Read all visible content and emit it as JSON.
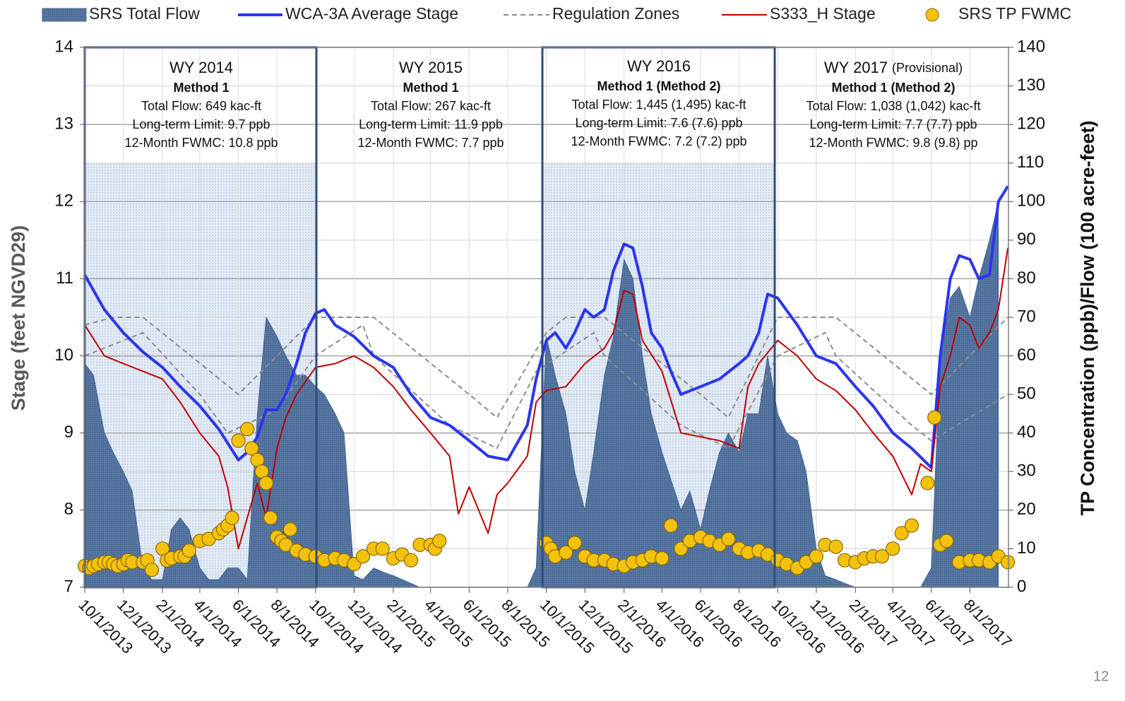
{
  "chart_data": {
    "type": "combo",
    "y_label": "Stage (feet NGVD29)",
    "y2_label": "TP Concentration (ppb)/Flow (100 acre-feet)",
    "page_number": "12",
    "xlim": [
      "10/1/2013",
      "10/1/2017"
    ],
    "xticks": [
      "10/1/2013",
      "12/1/2013",
      "2/1/2014",
      "4/1/2014",
      "6/1/2014",
      "8/1/2014",
      "10/1/2014",
      "12/1/2014",
      "2/1/2015",
      "4/1/2015",
      "6/1/2015",
      "8/1/2015",
      "10/1/2015",
      "12/1/2015",
      "2/1/2016",
      "4/1/2016",
      "6/1/2016",
      "8/1/2016",
      "10/1/2016",
      "12/1/2016",
      "2/1/2017",
      "4/1/2017",
      "6/1/2017",
      "8/1/2017"
    ],
    "ylim": [
      7,
      14
    ],
    "yticks": [
      7,
      8,
      9,
      10,
      11,
      12,
      13,
      14
    ],
    "y2lim": [
      0,
      140
    ],
    "y2ticks": [
      0,
      10,
      20,
      30,
      40,
      50,
      60,
      70,
      80,
      90,
      100,
      110,
      120,
      130,
      140
    ],
    "grid": true,
    "legend": "top",
    "annotations": [
      {
        "title": "WY 2014",
        "method": "Method 1",
        "lines": [
          "Total Flow: 649 kac-ft",
          "Long-term Limit: 9.7 ppb",
          "12-Month FWMC: 10.8 ppb"
        ]
      },
      {
        "title": "WY 2015",
        "method": "Method 1",
        "lines": [
          "Total Flow: 267 kac-ft",
          "Long-term Limit: 11.9 ppb",
          "12-Month FWMC: 7.7 ppb"
        ]
      },
      {
        "title": "WY 2016",
        "method": "Method 1 (Method 2)",
        "lines": [
          "Total Flow: 1,445 (1,495) kac-ft",
          "Long-term Limit: 7.6 (7.6) ppb",
          "12-Month FWMC: 7.2 (7.2) ppb"
        ]
      },
      {
        "title": "WY 2017",
        "note": "(Provisional)",
        "method": "Method 1 (Method 2)",
        "lines": [
          "Total Flow: 1,038 (1,042) kac-ft",
          "Long-term Limit: 7.7 (7.7) ppb",
          "12-Month FWMC: 9.8 (9.8) pp"
        ]
      }
    ],
    "series": [
      {
        "name": "SRS Total Flow",
        "kind": "area",
        "axis": "y2",
        "color": "#3d5f8c",
        "x": [
          "10/1/2013",
          "10/15/2013",
          "11/1/2013",
          "11/15/2013",
          "12/1/2013",
          "12/15/2013",
          "1/1/2014",
          "1/15/2014",
          "2/1/2014",
          "2/15/2014",
          "3/1/2014",
          "3/15/2014",
          "4/1/2014",
          "4/15/2014",
          "5/1/2014",
          "5/15/2014",
          "6/1/2014",
          "6/15/2014",
          "7/1/2014",
          "7/15/2014",
          "8/1/2014",
          "8/15/2014",
          "9/1/2014",
          "9/15/2014",
          "10/1/2014",
          "10/15/2014",
          "11/1/2014",
          "11/15/2014",
          "12/1/2014",
          "12/15/2014",
          "1/1/2015",
          "1/15/2015",
          "2/1/2015",
          "2/15/2015",
          "3/1/2015",
          "3/15/2015",
          "4/1/2015",
          "4/15/2015",
          "5/1/2015",
          "5/15/2015",
          "6/1/2015",
          "6/15/2015",
          "7/1/2015",
          "7/15/2015",
          "8/1/2015",
          "8/15/2015",
          "9/1/2015",
          "9/15/2015",
          "10/1/2015",
          "10/15/2015",
          "11/1/2015",
          "11/15/2015",
          "12/1/2015",
          "12/15/2015",
          "1/1/2016",
          "1/15/2016",
          "2/1/2016",
          "2/15/2016",
          "3/1/2016",
          "3/15/2016",
          "4/1/2016",
          "4/15/2016",
          "5/1/2016",
          "5/15/2016",
          "6/1/2016",
          "6/15/2016",
          "7/1/2016",
          "7/15/2016",
          "8/1/2016",
          "8/15/2016",
          "9/1/2016",
          "9/15/2016",
          "10/1/2016",
          "10/15/2016",
          "11/1/2016",
          "11/15/2016",
          "12/1/2016",
          "12/15/2016",
          "1/1/2017",
          "1/15/2017",
          "2/1/2017",
          "2/15/2017",
          "3/1/2017",
          "3/15/2017",
          "4/1/2017",
          "4/15/2017",
          "5/1/2017",
          "5/15/2017",
          "6/1/2017",
          "6/15/2017",
          "7/1/2017",
          "7/15/2017",
          "8/1/2017",
          "8/15/2017",
          "9/1/2017",
          "9/15/2017"
        ],
        "values": [
          58,
          55,
          40,
          35,
          30,
          25,
          5,
          2,
          2,
          15,
          18,
          15,
          5,
          2,
          2,
          5,
          5,
          2,
          45,
          70,
          65,
          60,
          55,
          55,
          52,
          50,
          45,
          40,
          3,
          2,
          5,
          4,
          3,
          2,
          1,
          0,
          0,
          0,
          0,
          0,
          0,
          0,
          0,
          0,
          0,
          0,
          0,
          5,
          65,
          55,
          45,
          30,
          20,
          35,
          55,
          65,
          85,
          80,
          60,
          45,
          35,
          28,
          20,
          25,
          15,
          25,
          35,
          40,
          35,
          45,
          45,
          60,
          45,
          40,
          38,
          30,
          10,
          3,
          2,
          1,
          0,
          0,
          0,
          0,
          0,
          0,
          0,
          0,
          5,
          60,
          75,
          78,
          70,
          80,
          90,
          100
        ]
      },
      {
        "name": "WCA-3A Average Stage",
        "kind": "line",
        "color": "#2a35f0",
        "width": 4,
        "x": [
          "10/1/2013",
          "11/1/2013",
          "12/1/2013",
          "1/1/2014",
          "2/1/2014",
          "3/1/2014",
          "4/1/2014",
          "5/1/2014",
          "6/1/2014",
          "6/15/2014",
          "7/1/2014",
          "7/15/2014",
          "8/1/2014",
          "8/15/2014",
          "9/1/2014",
          "9/15/2014",
          "10/1/2014",
          "10/15/2014",
          "11/1/2014",
          "12/1/2014",
          "1/1/2015",
          "2/1/2015",
          "3/1/2015",
          "4/1/2015",
          "5/1/2015",
          "6/1/2015",
          "7/1/2015",
          "8/1/2015",
          "9/1/2015",
          "9/15/2015",
          "10/1/2015",
          "10/15/2015",
          "11/1/2015",
          "11/15/2015",
          "12/1/2015",
          "12/15/2015",
          "1/1/2016",
          "1/15/2016",
          "2/1/2016",
          "2/15/2016",
          "3/1/2016",
          "3/15/2016",
          "4/1/2016",
          "4/15/2016",
          "5/1/2016",
          "6/1/2016",
          "7/1/2016",
          "8/1/2016",
          "8/15/2016",
          "9/1/2016",
          "9/15/2016",
          "10/1/2016",
          "11/1/2016",
          "12/1/2016",
          "1/1/2017",
          "2/1/2017",
          "3/1/2017",
          "4/1/2017",
          "5/1/2017",
          "6/1/2017",
          "6/15/2017",
          "7/1/2017",
          "7/15/2017",
          "8/1/2017",
          "8/15/2017",
          "9/1/2017",
          "9/15/2017",
          "9/30/2017"
        ],
        "values": [
          11.05,
          10.6,
          10.3,
          10.05,
          9.85,
          9.6,
          9.35,
          9.05,
          8.65,
          8.75,
          8.95,
          9.3,
          9.3,
          9.5,
          9.9,
          10.3,
          10.55,
          10.6,
          10.4,
          10.25,
          10.0,
          9.85,
          9.5,
          9.2,
          9.1,
          8.9,
          8.7,
          8.65,
          9.1,
          9.7,
          10.2,
          10.3,
          10.1,
          10.3,
          10.6,
          10.5,
          10.6,
          11.1,
          11.45,
          11.4,
          10.9,
          10.3,
          10.1,
          9.8,
          9.5,
          9.6,
          9.7,
          9.9,
          10.0,
          10.3,
          10.8,
          10.75,
          10.4,
          10.0,
          9.9,
          9.6,
          9.35,
          9.0,
          8.8,
          8.55,
          10.0,
          11.0,
          11.3,
          11.25,
          11.0,
          11.05,
          12.0,
          12.2
        ]
      },
      {
        "name": "Regulation Zones",
        "kind": "dashed",
        "color": "#8c8c8c",
        "width": 2,
        "lines": [
          {
            "x": [
              "10/1/2013",
              "11/15/2013",
              "1/1/2014",
              "6/1/2014",
              "10/1/2014",
              "1/1/2015",
              "6/1/2015",
              "7/15/2015",
              "10/1/2015",
              "11/1/2015",
              "1/1/2016",
              "6/1/2016",
              "7/15/2016",
              "10/1/2016",
              "1/1/2017",
              "6/1/2017",
              "9/30/2017"
            ],
            "values": [
              10.4,
              10.5,
              10.5,
              9.5,
              10.5,
              10.5,
              9.5,
              9.2,
              10.3,
              10.5,
              10.5,
              9.5,
              9.2,
              10.5,
              10.5,
              9.5,
              10.5
            ]
          },
          {
            "x": [
              "10/1/2013",
              "1/1/2014",
              "4/1/2014",
              "5/15/2014",
              "8/1/2014",
              "10/1/2014",
              "12/15/2014",
              "1/1/2015",
              "5/1/2015",
              "7/15/2015",
              "9/15/2015",
              "12/15/2015",
              "1/1/2016",
              "5/1/2016",
              "7/15/2016",
              "10/1/2016",
              "12/15/2016",
              "1/1/2017",
              "5/1/2017",
              "6/1/2017",
              "9/30/2017"
            ],
            "values": [
              10.0,
              10.3,
              9.5,
              9.0,
              9.3,
              10.0,
              10.4,
              10.0,
              9.1,
              8.8,
              9.8,
              10.3,
              10.0,
              9.1,
              8.8,
              10.0,
              10.3,
              10.0,
              9.1,
              8.9,
              9.5
            ]
          }
        ]
      },
      {
        "name": "S333_H Stage",
        "kind": "line",
        "color": "#c00000",
        "width": 2,
        "x": [
          "10/1/2013",
          "11/1/2013",
          "12/1/2013",
          "1/1/2014",
          "2/1/2014",
          "3/1/2014",
          "4/1/2014",
          "5/1/2014",
          "5/15/2014",
          "6/1/2014",
          "6/15/2014",
          "7/1/2014",
          "7/15/2014",
          "8/1/2014",
          "8/15/2014",
          "9/1/2014",
          "10/1/2014",
          "11/1/2014",
          "12/1/2014",
          "1/1/2015",
          "2/1/2015",
          "3/1/2015",
          "4/1/2015",
          "5/1/2015",
          "5/15/2015",
          "6/1/2015",
          "7/1/2015",
          "7/15/2015",
          "8/1/2015",
          "9/1/2015",
          "9/15/2015",
          "10/1/2015",
          "11/1/2015",
          "12/1/2015",
          "1/1/2016",
          "1/15/2016",
          "2/1/2016",
          "2/15/2016",
          "3/1/2016",
          "4/1/2016",
          "5/1/2016",
          "6/1/2016",
          "7/1/2016",
          "8/1/2016",
          "8/15/2016",
          "9/1/2016",
          "10/1/2016",
          "11/1/2016",
          "12/1/2016",
          "1/1/2017",
          "2/1/2017",
          "3/1/2017",
          "4/1/2017",
          "5/1/2017",
          "5/15/2017",
          "6/1/2017",
          "6/15/2017",
          "7/1/2017",
          "7/15/2017",
          "8/1/2017",
          "8/15/2017",
          "9/1/2017",
          "9/15/2017",
          "9/30/2017"
        ],
        "values": [
          10.4,
          10.0,
          9.9,
          9.8,
          9.7,
          9.4,
          9.0,
          8.7,
          8.3,
          7.5,
          7.9,
          8.35,
          7.9,
          8.8,
          9.2,
          9.5,
          9.85,
          9.9,
          10.0,
          9.85,
          9.6,
          9.3,
          9.0,
          8.7,
          7.95,
          8.3,
          7.7,
          8.2,
          8.35,
          8.7,
          9.4,
          9.55,
          9.6,
          9.9,
          10.1,
          10.3,
          10.85,
          10.8,
          10.2,
          9.8,
          9.0,
          8.95,
          8.9,
          8.8,
          9.6,
          9.9,
          10.2,
          10.0,
          9.7,
          9.55,
          9.3,
          9.0,
          8.7,
          8.2,
          8.6,
          8.5,
          9.6,
          10.0,
          10.5,
          10.4,
          10.1,
          10.3,
          10.6,
          11.4
        ]
      },
      {
        "name": "SRS TP FWMC",
        "kind": "dots",
        "axis": "y2",
        "color": "#f4c20d",
        "x": [
          "10/1/2013",
          "10/8/2013",
          "10/15/2013",
          "10/22/2013",
          "11/1/2013",
          "11/8/2013",
          "11/15/2013",
          "11/22/2013",
          "12/1/2013",
          "12/8/2013",
          "12/15/2013",
          "1/1/2014",
          "1/8/2014",
          "1/15/2014",
          "2/1/2014",
          "2/8/2014",
          "2/15/2014",
          "3/1/2014",
          "3/8/2014",
          "3/15/2014",
          "4/1/2014",
          "4/15/2014",
          "5/1/2014",
          "5/8/2014",
          "5/15/2014",
          "5/22/2014",
          "6/1/2014",
          "6/15/2014",
          "6/22/2014",
          "7/1/2014",
          "7/8/2014",
          "7/15/2014",
          "7/22/2014",
          "8/1/2014",
          "8/8/2014",
          "8/15/2014",
          "8/22/2014",
          "9/1/2014",
          "9/15/2014",
          "10/1/2014",
          "10/15/2014",
          "11/1/2014",
          "11/15/2014",
          "12/1/2014",
          "12/15/2014",
          "1/1/2015",
          "1/15/2015",
          "2/1/2015",
          "2/15/2015",
          "3/1/2015",
          "3/15/2015",
          "4/1/2015",
          "4/8/2015",
          "4/15/2015",
          "10/1/2015",
          "10/8/2015",
          "10/15/2015",
          "11/1/2015",
          "11/15/2015",
          "12/1/2015",
          "12/15/2015",
          "1/1/2016",
          "1/15/2016",
          "2/1/2016",
          "2/15/2016",
          "3/1/2016",
          "3/15/2016",
          "4/1/2016",
          "4/15/2016",
          "5/1/2016",
          "5/15/2016",
          "6/1/2016",
          "6/15/2016",
          "7/1/2016",
          "7/15/2016",
          "8/1/2016",
          "8/15/2016",
          "9/1/2016",
          "9/15/2016",
          "10/1/2016",
          "10/15/2016",
          "11/1/2016",
          "11/15/2016",
          "12/1/2016",
          "12/15/2016",
          "1/1/2017",
          "1/15/2017",
          "2/1/2017",
          "2/15/2017",
          "3/1/2017",
          "3/15/2017",
          "4/1/2017",
          "4/15/2017",
          "5/1/2017",
          "5/26/2017",
          "6/6/2017",
          "6/15/2017",
          "6/25/2017",
          "7/15/2017",
          "8/1/2017",
          "8/15/2017",
          "9/1/2017",
          "9/15/2017",
          "9/30/2017"
        ],
        "values": [
          5.5,
          5,
          5.5,
          6,
          6.5,
          6.5,
          6,
          5.5,
          6,
          7,
          6.5,
          6.5,
          7,
          4.5,
          10,
          7,
          7.5,
          8,
          8,
          9.5,
          12,
          12.5,
          14,
          15,
          16,
          18,
          38,
          41,
          36,
          33,
          30,
          27,
          18,
          13,
          12,
          11,
          15,
          9.5,
          8.5,
          8,
          7,
          7.5,
          7,
          6,
          8,
          10,
          10,
          7.5,
          8.5,
          7,
          11,
          11,
          10,
          12,
          11.5,
          10,
          8,
          9,
          11.5,
          8,
          7,
          7,
          6,
          5.5,
          6.5,
          7,
          8,
          7.5,
          16,
          10,
          12,
          13,
          12,
          11,
          12.5,
          10,
          9,
          9.5,
          8.5,
          7,
          6,
          5,
          6.5,
          8,
          11,
          10.5,
          7,
          6.5,
          7.5,
          8,
          8,
          10,
          14,
          16,
          27,
          44,
          11,
          12,
          6.5,
          7,
          7,
          6.5,
          8,
          6.5
        ]
      }
    ]
  }
}
